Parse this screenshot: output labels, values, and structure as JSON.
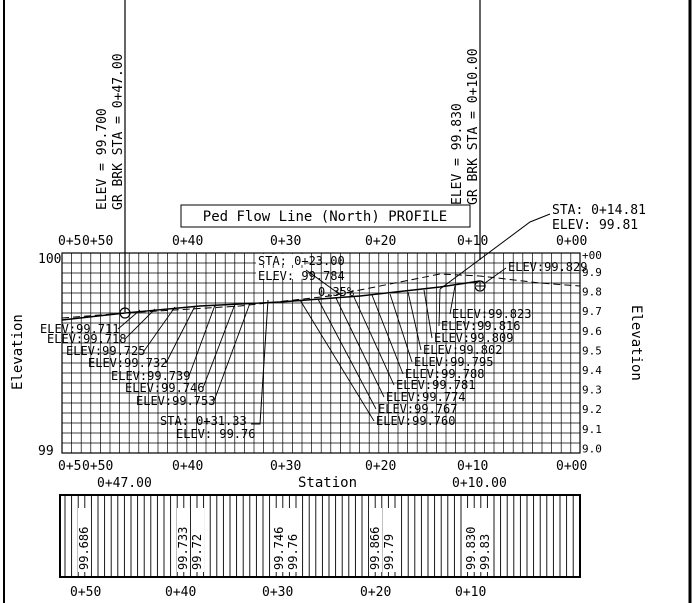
{
  "title": "Ped Flow Line (North) PROFILE",
  "breaks": [
    {
      "sta": "GR BRK STA = 0+47.00",
      "elev": "ELEV = 99.700"
    },
    {
      "sta": "GR BRK STA = 0+10.00",
      "elev": "ELEV = 99.830"
    }
  ],
  "axes": {
    "station_label": "Station",
    "left_label": "Elevation",
    "right_label": "Elevation",
    "top_ticks": [
      "0+50",
      "0+40",
      "0+30",
      "0+20",
      "0+10",
      "0+00"
    ],
    "top_ticks_overlap": "0+5",
    "bottom_ticks": [
      "0+50",
      "0+40",
      "0+30",
      "0+20",
      "0+10",
      "0+00"
    ],
    "bottom_ticks_overlap": "0+5",
    "y_top": "100",
    "y_bottom": "99",
    "right_y_ticks": [
      "9.9",
      "9.8",
      "9.7",
      "9.6",
      "9.5",
      "9.4",
      "9.3",
      "9.2",
      "9.1",
      "9.0"
    ],
    "right_y_top": "+00",
    "station_marks": [
      "0+47.00",
      "0+10.00"
    ]
  },
  "callouts": {
    "hp_sta": "STA: 0+14.81",
    "hp_elev": "ELEV: 99.81",
    "mid_sta": "STA: 0+23.00",
    "mid_elev": "ELEV: 99.784",
    "low_sta": "STA: 0+31.33",
    "low_elev": "ELEV: 99.76",
    "grade": "0.35%"
  },
  "elev_labels": [
    "ELEV:99.711",
    "ELEV:99.718",
    "ELEV:99.725",
    "ELEV:99.732",
    "ELEV:99.739",
    "ELEV:99.746",
    "ELEV:99.753",
    "ELEV:99.760",
    "ELEV:99.767",
    "ELEV:99.774",
    "ELEV:99.781",
    "ELEV:99.788",
    "ELEV:99.795",
    "ELEV:99.802",
    "ELEV:99.809",
    "ELEV:99.816",
    "ELEV:99.823",
    "ELEV:99.829"
  ],
  "table": {
    "values": [
      "99.686",
      "99.733",
      "99.72",
      "99.746",
      "99.76",
      "99.866",
      "99.79",
      "99.830",
      "99.83"
    ],
    "station_labels": [
      "0+50",
      "0+40",
      "0+30",
      "0+20",
      "0+10"
    ]
  }
}
